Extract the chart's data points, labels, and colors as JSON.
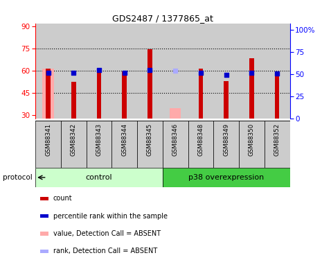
{
  "title": "GDS2487 / 1377865_at",
  "samples": [
    "GSM88341",
    "GSM88342",
    "GSM88343",
    "GSM88344",
    "GSM88345",
    "GSM88346",
    "GSM88348",
    "GSM88349",
    "GSM88350",
    "GSM88352"
  ],
  "count_values": [
    61.5,
    52.5,
    60.5,
    59.5,
    74.5,
    null,
    61.5,
    53.0,
    68.5,
    58.5
  ],
  "rank_values": [
    58.5,
    58.5,
    60.5,
    58.5,
    60.5,
    null,
    58.5,
    57.5,
    58.5,
    58.0
  ],
  "absent_count_values": [
    61.5,
    null,
    null,
    null,
    null,
    35.0,
    null,
    null,
    null,
    null
  ],
  "absent_rank_values": [
    null,
    null,
    null,
    null,
    null,
    54.0,
    null,
    null,
    null,
    null
  ],
  "ylim_left": [
    28,
    92
  ],
  "ylim_right": [
    0,
    107
  ],
  "yticks_left": [
    30,
    45,
    60,
    75,
    90
  ],
  "yticks_right": [
    0,
    25,
    50,
    75,
    100
  ],
  "ytick_labels_right": [
    "0",
    "25",
    "50",
    "75",
    "100%"
  ],
  "control_color_light": "#ccffcc",
  "control_color_dark": "#44bb44",
  "p38_color_light": "#44cc44",
  "bar_color_present": "#cc0000",
  "bar_color_absent_count": "#ffaaaa",
  "bar_color_absent_rank": "#aaaaff",
  "rank_color_present": "#0000cc",
  "tick_bg": "#cccccc",
  "plot_bg": "#ffffff",
  "legend_items": [
    {
      "color": "#cc0000",
      "label": "count"
    },
    {
      "color": "#0000cc",
      "label": "percentile rank within the sample"
    },
    {
      "color": "#ffaaaa",
      "label": "value, Detection Call = ABSENT"
    },
    {
      "color": "#aaaaff",
      "label": "rank, Detection Call = ABSENT"
    }
  ]
}
